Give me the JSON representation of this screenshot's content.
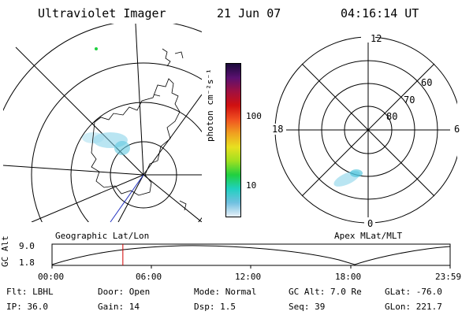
{
  "header": {
    "instrument": "Ultraviolet Imager",
    "date": "21 Jun 07",
    "time": "04:16:14 UT"
  },
  "colorbar": {
    "unit_label": "photon cm⁻²s⁻¹",
    "ticks": [
      "100",
      "10"
    ],
    "colors": [
      "#1a0a3a",
      "#5a1070",
      "#a01040",
      "#d01010",
      "#f05020",
      "#f0a020",
      "#e8e020",
      "#a0e020",
      "#20d040",
      "#20d0c0",
      "#70c0e0",
      "#e8f0f8"
    ]
  },
  "left_panel": {
    "label": "Geographic Lat/Lon"
  },
  "right_panel": {
    "label": "Apex MLat/MLT",
    "mlt_labels": {
      "top": "12",
      "left": "18",
      "right": "6",
      "bottom": "0"
    },
    "lat_labels": [
      "60",
      "70",
      "80"
    ]
  },
  "alt_plot": {
    "ylabel": "GC Alt",
    "yticks": [
      "9.0",
      "1.8"
    ],
    "xticks": [
      "00:00",
      "06:00",
      "12:00",
      "18:00",
      "23:59"
    ],
    "marker_hour": 4.27,
    "marker_color": "#d00000"
  },
  "info": {
    "row1": [
      {
        "key": "Flt:",
        "value": "LBHL"
      },
      {
        "key": "Door:",
        "value": "Open"
      },
      {
        "key": "Mode:",
        "value": "Normal"
      },
      {
        "key": "GC Alt:",
        "value": "7.0 Re"
      },
      {
        "key": "GLat:",
        "value": "-76.0"
      }
    ],
    "row2": [
      {
        "key": "IP:",
        "value": "36.0"
      },
      {
        "key": "Gain:",
        "value": "14"
      },
      {
        "key": "Dsp:",
        "value": "1.5"
      },
      {
        "key": "Seq:",
        "value": "39"
      },
      {
        "key": "GLon:",
        "value": "221.7"
      }
    ]
  }
}
